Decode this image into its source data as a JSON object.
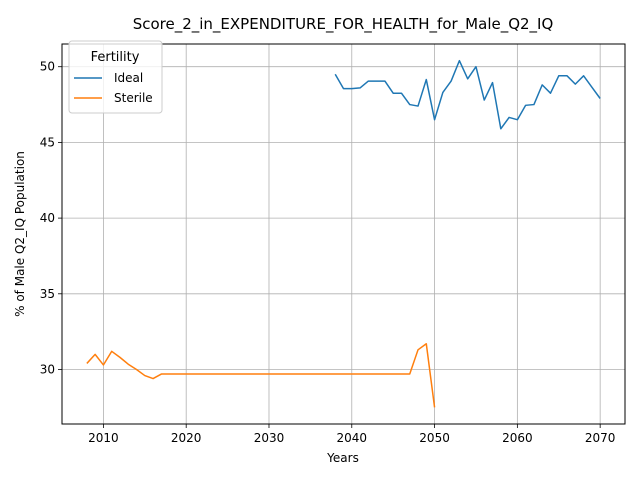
{
  "chart_data": {
    "type": "line",
    "title": "Score_2_in_EXPENDITURE_FOR_HEALTH_for_Male_Q2_IQ",
    "xlabel": "Years",
    "ylabel": "% of Male Q2_IQ Population",
    "xlim": [
      2005,
      2073
    ],
    "ylim": [
      26.4,
      51.5
    ],
    "xticks": [
      2010,
      2020,
      2030,
      2040,
      2050,
      2060,
      2070
    ],
    "yticks": [
      30,
      35,
      40,
      45,
      50
    ],
    "grid": true,
    "legend": {
      "title": "Fertility",
      "placement": "top-left"
    },
    "series": [
      {
        "name": "Ideal",
        "color": "#1f77b4",
        "x": [
          2038,
          2039,
          2040,
          2041,
          2042,
          2043,
          2044,
          2045,
          2046,
          2047,
          2048,
          2049,
          2050,
          2051,
          2052,
          2053,
          2054,
          2055,
          2056,
          2057,
          2058,
          2059,
          2060,
          2061,
          2062,
          2063,
          2064,
          2065,
          2066,
          2067,
          2068,
          2069,
          2070
        ],
        "y": [
          49.5,
          48.55,
          48.55,
          48.6,
          49.05,
          49.05,
          49.05,
          48.25,
          48.25,
          47.5,
          47.4,
          49.15,
          46.5,
          48.3,
          49.05,
          50.4,
          49.2,
          50.0,
          47.8,
          48.95,
          45.9,
          46.65,
          46.5,
          47.45,
          47.5,
          48.8,
          48.25,
          49.4,
          49.4,
          48.85,
          49.4,
          48.65,
          47.9
        ]
      },
      {
        "name": "Sterile",
        "color": "#ff7f0e",
        "x": [
          2008,
          2009,
          2010,
          2011,
          2012,
          2013,
          2014,
          2015,
          2016,
          2017,
          2018,
          2019,
          2020,
          2021,
          2022,
          2023,
          2024,
          2025,
          2026,
          2027,
          2028,
          2029,
          2030,
          2031,
          2032,
          2033,
          2034,
          2035,
          2036,
          2037,
          2038,
          2039,
          2040,
          2041,
          2042,
          2043,
          2044,
          2045,
          2046,
          2047,
          2048,
          2049,
          2050
        ],
        "y": [
          30.4,
          31.0,
          30.3,
          31.2,
          30.8,
          30.35,
          30.0,
          29.6,
          29.4,
          29.7,
          29.7,
          29.7,
          29.7,
          29.7,
          29.7,
          29.7,
          29.7,
          29.7,
          29.7,
          29.7,
          29.7,
          29.7,
          29.7,
          29.7,
          29.7,
          29.7,
          29.7,
          29.7,
          29.7,
          29.7,
          29.7,
          29.7,
          29.7,
          29.7,
          29.7,
          29.7,
          29.7,
          29.7,
          29.7,
          29.7,
          31.3,
          31.7,
          27.5
        ]
      }
    ]
  }
}
